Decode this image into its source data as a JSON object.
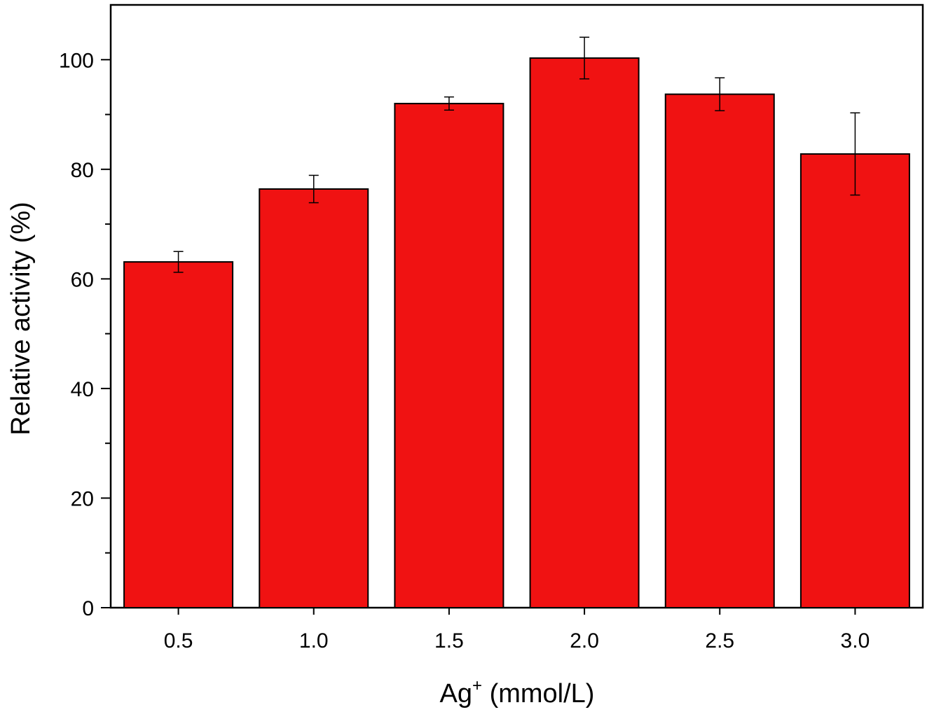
{
  "chart_data": {
    "type": "bar",
    "title": "",
    "xlabel_main": "Ag",
    "xlabel_sup": "+",
    "xlabel_rest": " (mmol/L)",
    "ylabel": "Relative activity (%)",
    "categories": [
      "0.5",
      "1.0",
      "1.5",
      "2.0",
      "2.5",
      "3.0"
    ],
    "values": [
      63.1,
      76.4,
      92.0,
      100.3,
      93.7,
      82.8
    ],
    "errors": [
      1.9,
      2.5,
      1.2,
      3.8,
      3.0,
      7.5
    ],
    "ylim": [
      0,
      110
    ],
    "yticks": [
      0,
      20,
      40,
      60,
      80,
      100
    ],
    "ytick_labels": [
      "0",
      "20",
      "40",
      "60",
      "80",
      "100"
    ],
    "grid": false,
    "colors": {
      "bar": "#f01212",
      "stroke": "#000000"
    }
  }
}
